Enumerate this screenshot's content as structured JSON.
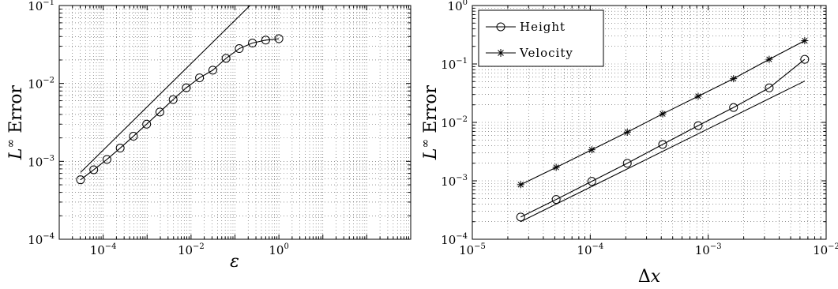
{
  "chart_data": [
    {
      "type": "line",
      "xscale": "log",
      "yscale": "log",
      "xlabel": "ε",
      "ylabel_main": "L",
      "ylabel_sup": "∞",
      "ylabel_rest": " Error",
      "xlim": [
        1e-05,
        1000
      ],
      "ylim": [
        0.0001,
        0.1
      ],
      "xtick_values": [
        0.0001,
        0.01,
        1
      ],
      "xtick_labels": [
        {
          "base": "10",
          "exp": "−4"
        },
        {
          "base": "10",
          "exp": "−2"
        },
        {
          "base": "10",
          "exp": "0"
        }
      ],
      "ytick_values": [
        0.0001,
        0.001,
        0.01,
        0.1
      ],
      "ytick_labels": [
        {
          "base": "10",
          "exp": "−4"
        },
        {
          "base": "10",
          "exp": "−3"
        },
        {
          "base": "10",
          "exp": "−2"
        },
        {
          "base": "10",
          "exp": "−1"
        }
      ],
      "grid": true,
      "series": [
        {
          "marker": "circle",
          "x": [
            3.05e-05,
            6.1e-05,
            0.000122,
            0.000244,
            0.000488,
            0.000977,
            0.00195,
            0.00391,
            0.00781,
            0.0156,
            0.0313,
            0.0625,
            0.125,
            0.25,
            0.5,
            1.0
          ],
          "values": [
            0.00058,
            0.00078,
            0.00106,
            0.00148,
            0.0021,
            0.003,
            0.0043,
            0.0062,
            0.0088,
            0.0118,
            0.0148,
            0.021,
            0.028,
            0.033,
            0.036,
            0.0375
          ]
        },
        {
          "marker": "none",
          "x": [
            3.05e-05,
            0.22
          ],
          "values": [
            0.00072,
            0.1
          ]
        }
      ]
    },
    {
      "type": "line",
      "xscale": "log",
      "yscale": "log",
      "xlabel": "Δx",
      "ylabel_main": "L",
      "ylabel_sup": "∞",
      "ylabel_rest": " Error",
      "xlim": [
        1e-05,
        0.01
      ],
      "ylim": [
        0.0001,
        1
      ],
      "xtick_values": [
        1e-05,
        0.0001,
        0.001,
        0.01
      ],
      "xtick_labels": [
        {
          "base": "10",
          "exp": "−5"
        },
        {
          "base": "10",
          "exp": "−4"
        },
        {
          "base": "10",
          "exp": "−3"
        },
        {
          "base": "10",
          "exp": "−2"
        }
      ],
      "ytick_values": [
        0.0001,
        0.001,
        0.01,
        0.1,
        1
      ],
      "ytick_labels": [
        {
          "base": "10",
          "exp": "−4"
        },
        {
          "base": "10",
          "exp": "−3"
        },
        {
          "base": "10",
          "exp": "−2"
        },
        {
          "base": "10",
          "exp": "−1"
        },
        {
          "base": "10",
          "exp": "0"
        }
      ],
      "grid": true,
      "legend_position": "top-left",
      "series": [
        {
          "name": "Height",
          "marker": "circle",
          "x": [
            2.57e-05,
            5.14e-05,
            0.000103,
            0.000206,
            0.000411,
            0.000822,
            0.00164,
            0.00329,
            0.00658
          ],
          "values": [
            0.00024,
            0.00048,
            0.00098,
            0.002,
            0.0042,
            0.0088,
            0.018,
            0.039,
            0.12
          ]
        },
        {
          "name": "Velocity",
          "marker": "star",
          "x": [
            2.57e-05,
            5.14e-05,
            0.000103,
            0.000206,
            0.000411,
            0.000822,
            0.00164,
            0.00329,
            0.00658
          ],
          "values": [
            0.00086,
            0.0017,
            0.0034,
            0.0068,
            0.014,
            0.028,
            0.056,
            0.12,
            0.25
          ]
        },
        {
          "marker": "none",
          "x": [
            2.57e-05,
            0.00658
          ],
          "values": [
            0.0002,
            0.051
          ]
        }
      ]
    }
  ]
}
